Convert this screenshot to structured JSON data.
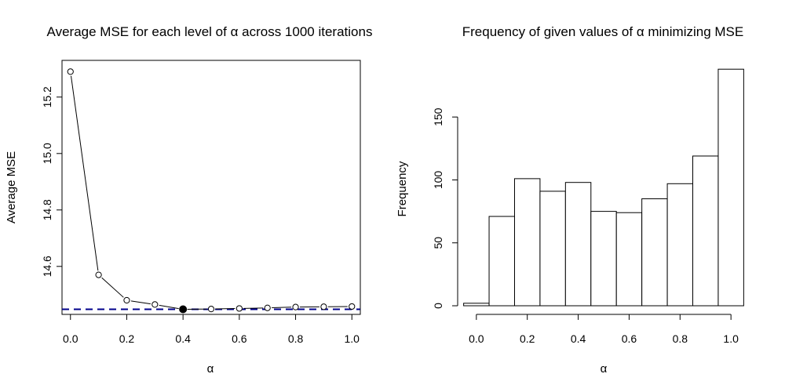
{
  "chart_data": [
    {
      "type": "line",
      "title": "Average MSE for each level of α across 1000 iterations",
      "xlabel": "α",
      "ylabel": "Average MSE",
      "x": [
        0.0,
        0.1,
        0.2,
        0.3,
        0.4,
        0.5,
        0.6,
        0.7,
        0.8,
        0.9,
        1.0
      ],
      "y": [
        15.29,
        14.57,
        14.48,
        14.465,
        14.448,
        14.449,
        14.451,
        14.453,
        14.456,
        14.457,
        14.458
      ],
      "highlight_index": 4,
      "reference_line": {
        "y": 14.448,
        "color": "#00008b",
        "style": "dashed"
      },
      "xlim": [
        -0.03,
        1.03
      ],
      "ylim": [
        14.43,
        15.33
      ],
      "xticks": [
        0.0,
        0.2,
        0.4,
        0.6,
        0.8,
        1.0
      ],
      "xtick_labels": [
        "0.0",
        "0.2",
        "0.4",
        "0.6",
        "0.8",
        "1.0"
      ],
      "yticks": [
        14.6,
        14.8,
        15.0,
        15.2
      ],
      "ytick_labels": [
        "14.6",
        "14.8",
        "15.0",
        "15.2"
      ],
      "grid": false
    },
    {
      "type": "bar",
      "title": "Frequency of given values of α minimizing MSE",
      "xlabel": "α",
      "ylabel": "Frequency",
      "bins": [
        [
          -0.05,
          0.05
        ],
        [
          0.05,
          0.15
        ],
        [
          0.15,
          0.25
        ],
        [
          0.25,
          0.35
        ],
        [
          0.35,
          0.45
        ],
        [
          0.45,
          0.55
        ],
        [
          0.55,
          0.65
        ],
        [
          0.65,
          0.75
        ],
        [
          0.75,
          0.85
        ],
        [
          0.85,
          0.95
        ],
        [
          0.95,
          1.05
        ]
      ],
      "values": [
        2,
        71,
        101,
        91,
        98,
        75,
        74,
        85,
        97,
        119,
        188
      ],
      "xlim": [
        -0.092,
        1.092
      ],
      "ylim": [
        0,
        195
      ],
      "xticks": [
        0.0,
        0.2,
        0.4,
        0.6,
        0.8,
        1.0
      ],
      "xtick_labels": [
        "0.0",
        "0.2",
        "0.4",
        "0.6",
        "0.8",
        "1.0"
      ],
      "yticks": [
        0,
        50,
        100,
        150
      ],
      "ytick_labels": [
        "0",
        "50",
        "100",
        "150"
      ],
      "grid": false
    }
  ]
}
